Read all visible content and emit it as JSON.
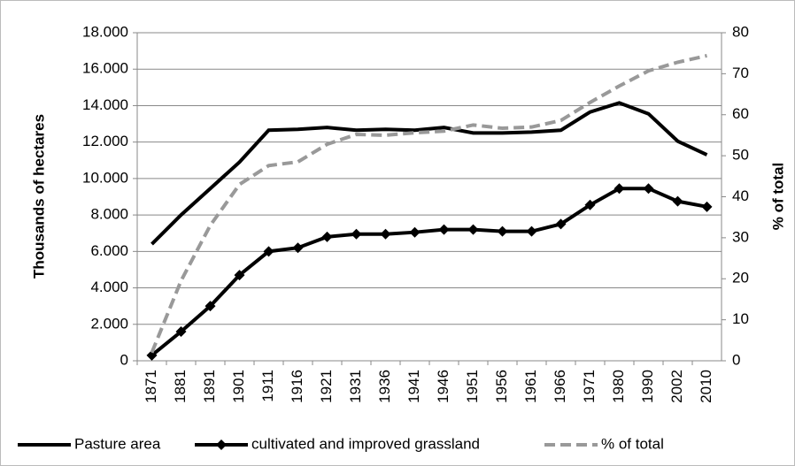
{
  "chart_data": {
    "type": "line",
    "ylabel": "Thousands of hectares",
    "y2label": "% of total",
    "categories": [
      "1871",
      "1881",
      "1891",
      "1901",
      "1911",
      "1916",
      "1921",
      "1931",
      "1936",
      "1941",
      "1946",
      "1951",
      "1956",
      "1961",
      "1966",
      "1971",
      "1980",
      "1990",
      "2002",
      "2010"
    ],
    "series": [
      {
        "name": "Pasture area",
        "color": "#000000",
        "marker": "none",
        "dashed": false,
        "values": [
          6400,
          8000,
          9450,
          10900,
          12650,
          12700,
          12800,
          12650,
          12700,
          12650,
          12800,
          12500,
          12500,
          12550,
          12650,
          13650,
          14150,
          13550,
          12050,
          11300
        ]
      },
      {
        "name": "cultivated and improved grassland",
        "color": "#000000",
        "marker": "diamond",
        "dashed": false,
        "values": [
          300,
          1600,
          3000,
          4700,
          6000,
          6200,
          6800,
          6950,
          6950,
          7050,
          7200,
          7200,
          7100,
          7100,
          7500,
          8550,
          9450,
          9450,
          8750,
          8450
        ]
      },
      {
        "name": "% of total",
        "color": "#999999",
        "marker": "none",
        "dashed": true,
        "axis": "y2",
        "values": [
          2,
          19.5,
          33,
          43,
          47.6,
          48.5,
          52.8,
          55.2,
          55,
          55.6,
          56,
          57.5,
          56.7,
          57,
          58.6,
          63,
          67,
          70.7,
          72.8,
          74.4
        ]
      }
    ],
    "ylim": [
      0,
      18000
    ],
    "yticks": [
      0,
      {
        "value": 2000,
        "label": "2.000"
      },
      {
        "value": 4000,
        "label": "4.000"
      },
      {
        "value": 6000,
        "label": "6.000"
      },
      {
        "value": 8000,
        "label": "8.000"
      },
      {
        "value": 10000,
        "label": "10.000"
      },
      {
        "value": 12000,
        "label": "12.000"
      },
      {
        "value": 14000,
        "label": "14.000"
      },
      {
        "value": 16000,
        "label": "16.000"
      },
      {
        "value": 18000,
        "label": "18.000"
      }
    ],
    "y2lim": [
      0,
      80
    ],
    "y2ticks": [
      0,
      10,
      20,
      30,
      40,
      50,
      60,
      70,
      80
    ],
    "grid": true,
    "legend": "bottom"
  }
}
